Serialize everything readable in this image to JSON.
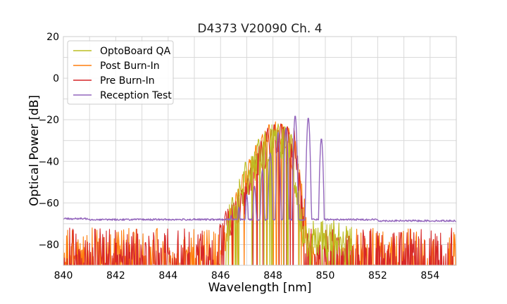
{
  "chart_data": {
    "type": "line",
    "title": "D4373 V20090 Ch. 4",
    "xlabel": "Wavelength [nm]",
    "ylabel": "Optical Power [dB]",
    "xlim": [
      840,
      855
    ],
    "ylim": [
      -90,
      20
    ],
    "xticks": [
      "840",
      "842",
      "844",
      "846",
      "848",
      "850",
      "852",
      "854"
    ],
    "yticks": [
      "20",
      "0",
      "−20",
      "−40",
      "−60",
      "−80"
    ],
    "grid": true,
    "legend": "top-left",
    "series": [
      {
        "name": "OptoBoard QA",
        "color": "#bcbd22",
        "noise_range": [
          846.2,
          851.0
        ],
        "envelope": [
          [
            846.2,
            -64
          ],
          [
            846.45,
            -58
          ],
          [
            846.7,
            -50
          ],
          [
            846.95,
            -42
          ],
          [
            847.2,
            -37
          ],
          [
            847.45,
            -30
          ],
          [
            847.7,
            -26
          ],
          [
            847.95,
            -23
          ],
          [
            848.2,
            -23
          ],
          [
            848.45,
            -24
          ],
          [
            848.7,
            -28
          ],
          [
            848.95,
            -52
          ],
          [
            849.2,
            -68
          ],
          [
            849.5,
            -68
          ],
          [
            850.0,
            -68
          ],
          [
            850.5,
            -68
          ],
          [
            851.0,
            -68
          ]
        ],
        "peaks": [
          [
            846.45,
            -57
          ],
          [
            846.7,
            -47
          ],
          [
            846.95,
            -40
          ],
          [
            847.2,
            -36
          ],
          [
            847.45,
            -29
          ],
          [
            847.7,
            -26
          ],
          [
            847.95,
            -22
          ],
          [
            848.2,
            -22
          ],
          [
            848.45,
            -23
          ],
          [
            848.7,
            -27
          ]
        ]
      },
      {
        "name": "Post Burn-In",
        "color": "#ff7f0e",
        "noise_range": [
          840.0,
          855.0
        ],
        "envelope": [
          [
            846.0,
            -70
          ],
          [
            846.3,
            -65
          ],
          [
            846.6,
            -56
          ],
          [
            846.85,
            -46
          ],
          [
            847.1,
            -40
          ],
          [
            847.35,
            -33
          ],
          [
            847.6,
            -27
          ],
          [
            847.85,
            -23
          ],
          [
            848.1,
            -21
          ],
          [
            848.35,
            -22
          ],
          [
            848.6,
            -24
          ],
          [
            848.85,
            -30
          ],
          [
            849.1,
            -48
          ],
          [
            849.3,
            -66
          ]
        ],
        "peaks": [
          [
            846.3,
            -64
          ],
          [
            846.6,
            -55
          ],
          [
            846.85,
            -46
          ],
          [
            847.1,
            -39
          ],
          [
            847.35,
            -32
          ],
          [
            847.6,
            -27
          ],
          [
            847.85,
            -22
          ],
          [
            848.1,
            -21
          ],
          [
            848.35,
            -22
          ],
          [
            848.6,
            -24
          ],
          [
            848.85,
            -30
          ]
        ]
      },
      {
        "name": "Pre Burn-In",
        "color": "#d62728",
        "noise_range": [
          840.0,
          855.0
        ],
        "envelope": [
          [
            845.9,
            -72
          ],
          [
            846.2,
            -64
          ],
          [
            846.5,
            -58
          ],
          [
            846.8,
            -52
          ],
          [
            847.05,
            -46
          ],
          [
            847.3,
            -38
          ],
          [
            847.55,
            -30
          ],
          [
            847.8,
            -24
          ],
          [
            848.05,
            -22
          ],
          [
            848.3,
            -22
          ],
          [
            848.55,
            -23
          ],
          [
            848.8,
            -24
          ],
          [
            849.0,
            -42
          ],
          [
            849.2,
            -70
          ]
        ],
        "peaks": [
          [
            846.2,
            -64
          ],
          [
            846.5,
            -60
          ],
          [
            846.8,
            -54
          ],
          [
            847.05,
            -48
          ],
          [
            847.3,
            -38
          ],
          [
            847.55,
            -30
          ],
          [
            847.8,
            -24
          ],
          [
            848.05,
            -22
          ],
          [
            848.3,
            -22
          ],
          [
            848.55,
            -23
          ],
          [
            848.8,
            -24
          ]
        ]
      },
      {
        "name": "Reception Test",
        "color": "#9467bd",
        "baseline": -68,
        "peaks": [
          [
            846.4,
            -66
          ],
          [
            846.7,
            -62
          ],
          [
            847.0,
            -56
          ],
          [
            847.3,
            -52
          ],
          [
            847.6,
            -44
          ],
          [
            847.9,
            -36
          ],
          [
            848.2,
            -26
          ],
          [
            848.5,
            -24
          ],
          [
            848.85,
            -18
          ],
          [
            849.35,
            -19
          ],
          [
            849.85,
            -29
          ]
        ]
      }
    ]
  }
}
